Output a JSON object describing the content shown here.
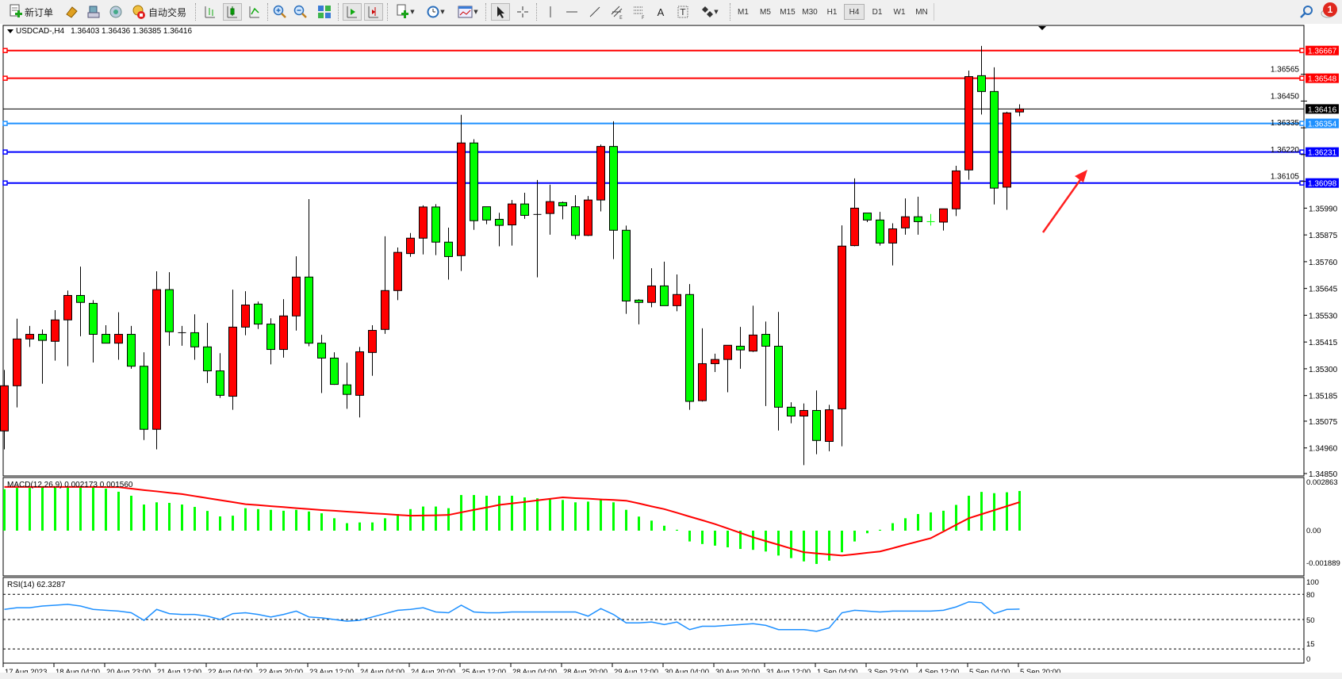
{
  "toolbar": {
    "new_order_label": "新订单",
    "auto_trading_label": "自动交易",
    "timeframes": [
      "M1",
      "M5",
      "M15",
      "M30",
      "H1",
      "H4",
      "D1",
      "W1",
      "MN"
    ],
    "selected_timeframe": "H4",
    "notification_count": "1"
  },
  "chart": {
    "symbol_header": "USDCAD-,H4",
    "ohlc_header": "1.36403 1.36436 1.36385 1.36416",
    "up_color": "#ff0000",
    "down_color": "#00ff00"
  },
  "chart_data": [
    {
      "type": "candlestick",
      "title": "USDCAD-,H4",
      "ylim": [
        1.3485,
        1.3675
      ],
      "price_ticks": [
        "1.36565",
        "1.36450",
        "1.36335",
        "1.36220",
        "1.36105",
        "1.35990",
        "1.35875",
        "1.35760",
        "1.35645",
        "1.35530",
        "1.35415",
        "1.35300",
        "1.35185",
        "1.35075",
        "1.34960",
        "1.34850"
      ],
      "time_labels": [
        "17 Aug 2023",
        "18 Aug 04:00",
        "20 Aug 23:00",
        "21 Aug 12:00",
        "22 Aug 04:00",
        "22 Aug 20:00",
        "23 Aug 12:00",
        "24 Aug 04:00",
        "24 Aug 20:00",
        "25 Aug 12:00",
        "28 Aug 04:00",
        "28 Aug 20:00",
        "29 Aug 12:00",
        "30 Aug 04:00",
        "30 Aug 20:00",
        "31 Aug 12:00",
        "1 Sep 04:00",
        "3 Sep 23:00",
        "4 Sep 12:00",
        "5 Sep 04:00",
        "5 Sep 20:00"
      ],
      "time_label_every_n_bars": 4,
      "ohlc": [
        [
          1.35033,
          1.35295,
          1.34954,
          1.35227
        ],
        [
          1.35227,
          1.35515,
          1.35134,
          1.35428
        ],
        [
          1.35428,
          1.35484,
          1.35394,
          1.35448
        ],
        [
          1.35448,
          1.35469,
          1.35236,
          1.35422
        ],
        [
          1.35418,
          1.35552,
          1.35335,
          1.3551
        ],
        [
          1.3551,
          1.35636,
          1.35311,
          1.35615
        ],
        [
          1.35615,
          1.35739,
          1.3544,
          1.35585
        ],
        [
          1.35581,
          1.35595,
          1.35327,
          1.35448
        ],
        [
          1.35448,
          1.35487,
          1.3541,
          1.3541
        ],
        [
          1.3541,
          1.35543,
          1.35339,
          1.35448
        ],
        [
          1.35448,
          1.35484,
          1.353,
          1.35311
        ],
        [
          1.35311,
          1.35371,
          1.34994,
          1.3504
        ],
        [
          1.3504,
          1.35719,
          1.34954,
          1.3564
        ],
        [
          1.3564,
          1.35715,
          1.35399,
          1.35459
        ],
        [
          1.35455,
          1.35484,
          1.35399,
          1.35455
        ],
        [
          1.35455,
          1.35534,
          1.35339,
          1.35394
        ],
        [
          1.35394,
          1.35497,
          1.35239,
          1.35291
        ],
        [
          1.35291,
          1.35367,
          1.35175,
          1.35186
        ],
        [
          1.35182,
          1.3564,
          1.35124,
          1.35479
        ],
        [
          1.35479,
          1.35633,
          1.35444,
          1.35574
        ],
        [
          1.35578,
          1.35589,
          1.35471,
          1.35492
        ],
        [
          1.35492,
          1.35517,
          1.35319,
          1.35383
        ],
        [
          1.35383,
          1.35599,
          1.35348,
          1.35527
        ],
        [
          1.35527,
          1.35783,
          1.35464,
          1.35694
        ],
        [
          1.35694,
          1.36029,
          1.35397,
          1.3541
        ],
        [
          1.3541,
          1.35446,
          1.35196,
          1.35346
        ],
        [
          1.35346,
          1.35371,
          1.35231,
          1.35233
        ],
        [
          1.35231,
          1.35326,
          1.35128,
          1.3519
        ],
        [
          1.35186,
          1.35394,
          1.35091,
          1.35373
        ],
        [
          1.3537,
          1.35487,
          1.3527,
          1.35465
        ],
        [
          1.35469,
          1.35869,
          1.3545,
          1.35636
        ],
        [
          1.35636,
          1.35821,
          1.35595,
          1.358
        ],
        [
          1.35795,
          1.35883,
          1.35781,
          1.35861
        ],
        [
          1.35861,
          1.36002,
          1.35791,
          1.35995
        ],
        [
          1.35995,
          1.36007,
          1.35788,
          1.35844
        ],
        [
          1.35844,
          1.35906,
          1.35683,
          1.35782
        ],
        [
          1.35786,
          1.36391,
          1.3572,
          1.3627
        ],
        [
          1.3627,
          1.36286,
          1.35897,
          1.35936
        ],
        [
          1.35996,
          1.35996,
          1.35921,
          1.35939
        ],
        [
          1.35942,
          1.3597,
          1.35826,
          1.35916
        ],
        [
          1.35918,
          1.36025,
          1.35829,
          1.36008
        ],
        [
          1.36008,
          1.36056,
          1.35944,
          1.35959
        ],
        [
          1.35963,
          1.36111,
          1.35693,
          1.35963
        ],
        [
          1.35967,
          1.36091,
          1.35876,
          1.36018
        ],
        [
          1.36014,
          1.36018,
          1.35942,
          1.36
        ],
        [
          1.35996,
          1.36046,
          1.35856,
          1.35873
        ],
        [
          1.35873,
          1.36042,
          1.3587,
          1.36025
        ],
        [
          1.36025,
          1.36263,
          1.35976,
          1.36255
        ],
        [
          1.36255,
          1.36363,
          1.35771,
          1.35895
        ],
        [
          1.35895,
          1.35915,
          1.35536,
          1.35591
        ],
        [
          1.35595,
          1.35599,
          1.35491,
          1.35585
        ],
        [
          1.35585,
          1.35732,
          1.35564,
          1.35656
        ],
        [
          1.35656,
          1.3576,
          1.35571,
          1.35571
        ],
        [
          1.35571,
          1.35705,
          1.35547,
          1.35619
        ],
        [
          1.35619,
          1.35664,
          1.35124,
          1.3516
        ],
        [
          1.35163,
          1.35474,
          1.35159,
          1.35322
        ],
        [
          1.35322,
          1.35365,
          1.35286,
          1.3534
        ],
        [
          1.3534,
          1.35401,
          1.35199,
          1.35401
        ],
        [
          1.35397,
          1.3548,
          1.353,
          1.35381
        ],
        [
          1.35376,
          1.35571,
          1.35372,
          1.35445
        ],
        [
          1.35448,
          1.35503,
          1.3514,
          1.35397
        ],
        [
          1.35397,
          1.35544,
          1.35035,
          1.35135
        ],
        [
          1.35135,
          1.35156,
          1.35066,
          1.35097
        ],
        [
          1.35097,
          1.35151,
          1.34886,
          1.35121
        ],
        [
          1.35121,
          1.35207,
          1.34933,
          1.34992
        ],
        [
          1.34988,
          1.35145,
          1.34946,
          1.35124
        ],
        [
          1.35128,
          1.35916,
          1.34967,
          1.35827
        ],
        [
          1.35829,
          1.36118,
          1.35826,
          1.3599
        ],
        [
          1.35969,
          1.35969,
          1.3593,
          1.35939
        ],
        [
          1.35939,
          1.35974,
          1.35829,
          1.3584
        ],
        [
          1.3584,
          1.35925,
          1.35744,
          1.35901
        ],
        [
          1.35905,
          1.36032,
          1.35876,
          1.35953
        ],
        [
          1.35953,
          1.36039,
          1.35876,
          1.35932
        ],
        [
          1.35932,
          1.35965,
          1.35915,
          1.35932
        ],
        [
          1.3593,
          1.35987,
          1.35894,
          1.35987
        ],
        [
          1.35987,
          1.36172,
          1.35956,
          1.3615
        ],
        [
          1.36154,
          1.36581,
          1.36112,
          1.36555
        ],
        [
          1.36559,
          1.36687,
          1.36392,
          1.36491
        ],
        [
          1.36491,
          1.36595,
          1.36006,
          1.36076
        ],
        [
          1.3608,
          1.36404,
          1.35983,
          1.36399
        ],
        [
          1.36403,
          1.36436,
          1.36385,
          1.36416
        ]
      ],
      "horizontal_lines": [
        {
          "price": 1.36667,
          "label": "1.36667",
          "color": "#ff0000"
        },
        {
          "price": 1.36548,
          "label": "1.36548",
          "color": "#ff0000"
        },
        {
          "price": 1.36416,
          "label": "1.36416",
          "color": "#000000"
        },
        {
          "price": 1.36354,
          "label": "1.36354",
          "color": "#1e90ff"
        },
        {
          "price": 1.36231,
          "label": "1.36231",
          "color": "#0000ff"
        },
        {
          "price": 1.36098,
          "label": "1.36098",
          "color": "#0000ff"
        }
      ],
      "annotation_arrow_color": "#ff0000"
    },
    {
      "type": "bar",
      "title": "MACD(12,26,9) 0.002173 0.001560",
      "ylim": [
        -0.00258,
        0.002863
      ],
      "tick_labels": [
        "0.002863",
        "0.00",
        "-0.001889"
      ],
      "histogram_color": "#00ff00",
      "signal_color": "#ff0000",
      "histogram": [
        0.00227,
        0.00234,
        0.00234,
        0.00239,
        0.00239,
        0.00242,
        0.00242,
        0.00242,
        0.0023,
        0.00213,
        0.00191,
        0.00143,
        0.00155,
        0.00152,
        0.00143,
        0.0013,
        0.00108,
        0.00078,
        0.00082,
        0.00123,
        0.00118,
        0.00114,
        0.00109,
        0.00114,
        0.00105,
        0.00095,
        0.00068,
        0.00041,
        0.00045,
        0.00045,
        0.00068,
        0.00091,
        0.00118,
        0.00132,
        0.00132,
        0.00123,
        0.00195,
        0.00195,
        0.00191,
        0.00191,
        0.00191,
        0.00182,
        0.00177,
        0.00177,
        0.00168,
        0.00155,
        0.00159,
        0.00168,
        0.00155,
        0.00114,
        0.00077,
        0.00055,
        0.00027,
        5e-05,
        -0.00059,
        -0.00073,
        -0.00082,
        -0.00091,
        -0.001,
        -0.00105,
        -0.00114,
        -0.00136,
        -0.0015,
        -0.00168,
        -0.00182,
        -0.00164,
        -0.00118,
        -0.00059,
        -0.00014,
        5e-05,
        0.00041,
        0.00068,
        0.00091,
        0.001,
        0.00109,
        0.00141,
        0.00191,
        0.00212,
        0.00205,
        0.0021,
        0.00217
      ],
      "signal": [
        0.00239,
        0.00239,
        0.00239,
        0.00239,
        0.00239,
        0.00239,
        0.00239,
        0.00239,
        0.00238,
        0.00238,
        0.0023,
        0.00222,
        0.00215,
        0.00207,
        0.002,
        0.00189,
        0.00178,
        0.00167,
        0.00156,
        0.00145,
        0.0014,
        0.00134,
        0.00129,
        0.00123,
        0.00118,
        0.00113,
        0.00109,
        0.00104,
        0.001,
        0.00095,
        0.00091,
        0.00086,
        0.00082,
        0.00083,
        0.00084,
        0.00086,
        0.001,
        0.00114,
        0.00127,
        0.00141,
        0.00149,
        0.00157,
        0.00166,
        0.00174,
        0.00182,
        0.00178,
        0.00175,
        0.00171,
        0.00168,
        0.00164,
        0.00149,
        0.00133,
        0.00118,
        0.00098,
        0.00077,
        0.00057,
        0.00036,
        0.00012,
        -0.00012,
        -0.00036,
        -0.00057,
        -0.00077,
        -0.00098,
        -0.00118,
        -0.00124,
        -0.0013,
        -0.00136,
        -0.00129,
        -0.00121,
        -0.00114,
        -0.00096,
        -0.00077,
        -0.00059,
        -0.00041,
        -5e-05,
        0.00032,
        0.00068,
        0.0009,
        0.00112,
        0.00134,
        0.00156
      ]
    },
    {
      "type": "line",
      "title": "RSI(14) 62.3287",
      "ylim": [
        0,
        100
      ],
      "tick_labels": [
        "100",
        "80",
        "50",
        "15",
        "0"
      ],
      "levels": [
        80,
        50,
        15
      ],
      "line_color": "#1e90ff",
      "values": [
        62,
        64,
        64,
        66,
        67,
        68,
        66,
        62,
        61,
        60,
        58,
        49,
        62,
        57,
        56,
        56,
        54,
        50,
        57,
        58,
        56,
        53,
        56,
        60,
        53,
        52,
        50,
        48,
        49,
        53,
        57,
        61,
        62,
        64,
        59,
        58,
        67,
        59,
        58,
        58,
        59,
        59,
        59,
        59,
        59,
        59,
        54,
        63,
        56,
        46,
        46,
        47,
        44,
        47,
        38,
        42,
        42,
        43,
        44,
        45,
        43,
        38,
        38,
        38,
        36,
        40,
        58,
        61,
        60,
        59,
        60,
        60,
        60,
        60,
        61,
        65,
        71,
        70,
        57,
        62,
        62.3287
      ]
    }
  ]
}
